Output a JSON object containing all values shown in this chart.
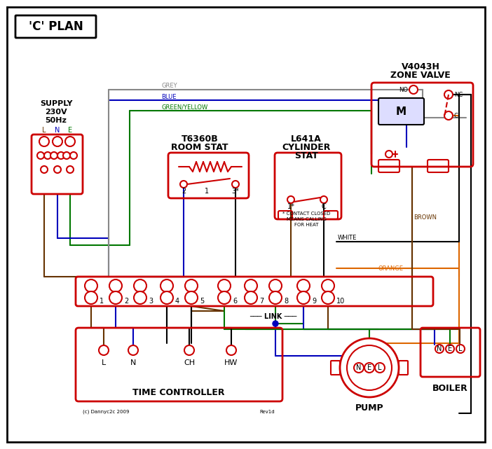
{
  "title": "'C' PLAN",
  "bg_color": "#ffffff",
  "red": "#cc0000",
  "blue": "#0000bb",
  "green": "#007700",
  "grey": "#888888",
  "brown": "#663300",
  "orange": "#dd6600",
  "black": "#000000",
  "navy": "#000080",
  "zone_valve_title1": "V4043H",
  "zone_valve_title2": "ZONE VALVE",
  "room_stat_title1": "T6360B",
  "room_stat_title2": "ROOM STAT",
  "cyl_stat_title1": "L641A",
  "cyl_stat_title2": "CYLINDER",
  "cyl_stat_title3": "STAT",
  "time_ctrl_label": "TIME CONTROLLER",
  "pump_label": "PUMP",
  "boiler_label": "BOILER",
  "link_label": "LINK",
  "copyright": "(c) Dannyc2c 2009",
  "rev": "Rev1d",
  "supply1": "SUPPLY",
  "supply2": "230V",
  "supply3": "50Hz"
}
